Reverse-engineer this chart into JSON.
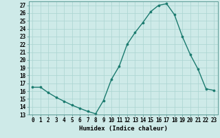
{
  "x": [
    0,
    1,
    2,
    3,
    4,
    5,
    6,
    7,
    8,
    9,
    10,
    11,
    12,
    13,
    14,
    15,
    16,
    17,
    18,
    19,
    20,
    21,
    22,
    23
  ],
  "y": [
    16.5,
    16.5,
    15.8,
    15.2,
    14.7,
    14.2,
    13.8,
    13.4,
    13.1,
    14.8,
    17.5,
    19.2,
    22.0,
    23.5,
    24.8,
    26.2,
    27.0,
    27.2,
    25.8,
    23.0,
    20.7,
    18.8,
    16.3,
    16.1
  ],
  "line_color": "#1a7a6e",
  "marker": "o",
  "marker_size": 2.2,
  "bg_color": "#ceeae8",
  "grid_color": "#aad4d0",
  "xlabel": "Humidex (Indice chaleur)",
  "xlim": [
    -0.5,
    23.5
  ],
  "ylim": [
    13,
    27.5
  ],
  "yticks": [
    13,
    14,
    15,
    16,
    17,
    18,
    19,
    20,
    21,
    22,
    23,
    24,
    25,
    26,
    27
  ],
  "xticks": [
    0,
    1,
    2,
    3,
    4,
    5,
    6,
    7,
    8,
    9,
    10,
    11,
    12,
    13,
    14,
    15,
    16,
    17,
    18,
    19,
    20,
    21,
    22,
    23
  ],
  "xlabel_fontsize": 6.5,
  "tick_fontsize": 5.5
}
